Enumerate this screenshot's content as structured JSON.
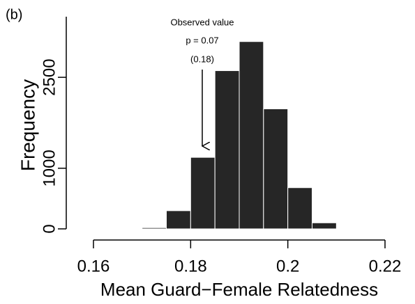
{
  "chart_data": {
    "type": "histogram",
    "panel_label": "(b)",
    "x_label": "Mean Guard−Female Relatedness",
    "y_label": "Frequency",
    "bins": [
      0.17,
      0.175,
      0.18,
      0.185,
      0.19,
      0.195,
      0.2,
      0.205,
      0.21
    ],
    "values": [
      20,
      300,
      1180,
      2610,
      3090,
      1980,
      680,
      100
    ],
    "color": "#262626",
    "xlim": [
      0.16,
      0.22
    ],
    "xticks": [
      0.16,
      0.18,
      0.2,
      0.22
    ],
    "ylim": [
      0,
      3500
    ],
    "yticks": [
      0,
      1000,
      2500
    ],
    "annotations": [
      "Observed value",
      "p = 0.07",
      "(0.18)"
    ]
  }
}
